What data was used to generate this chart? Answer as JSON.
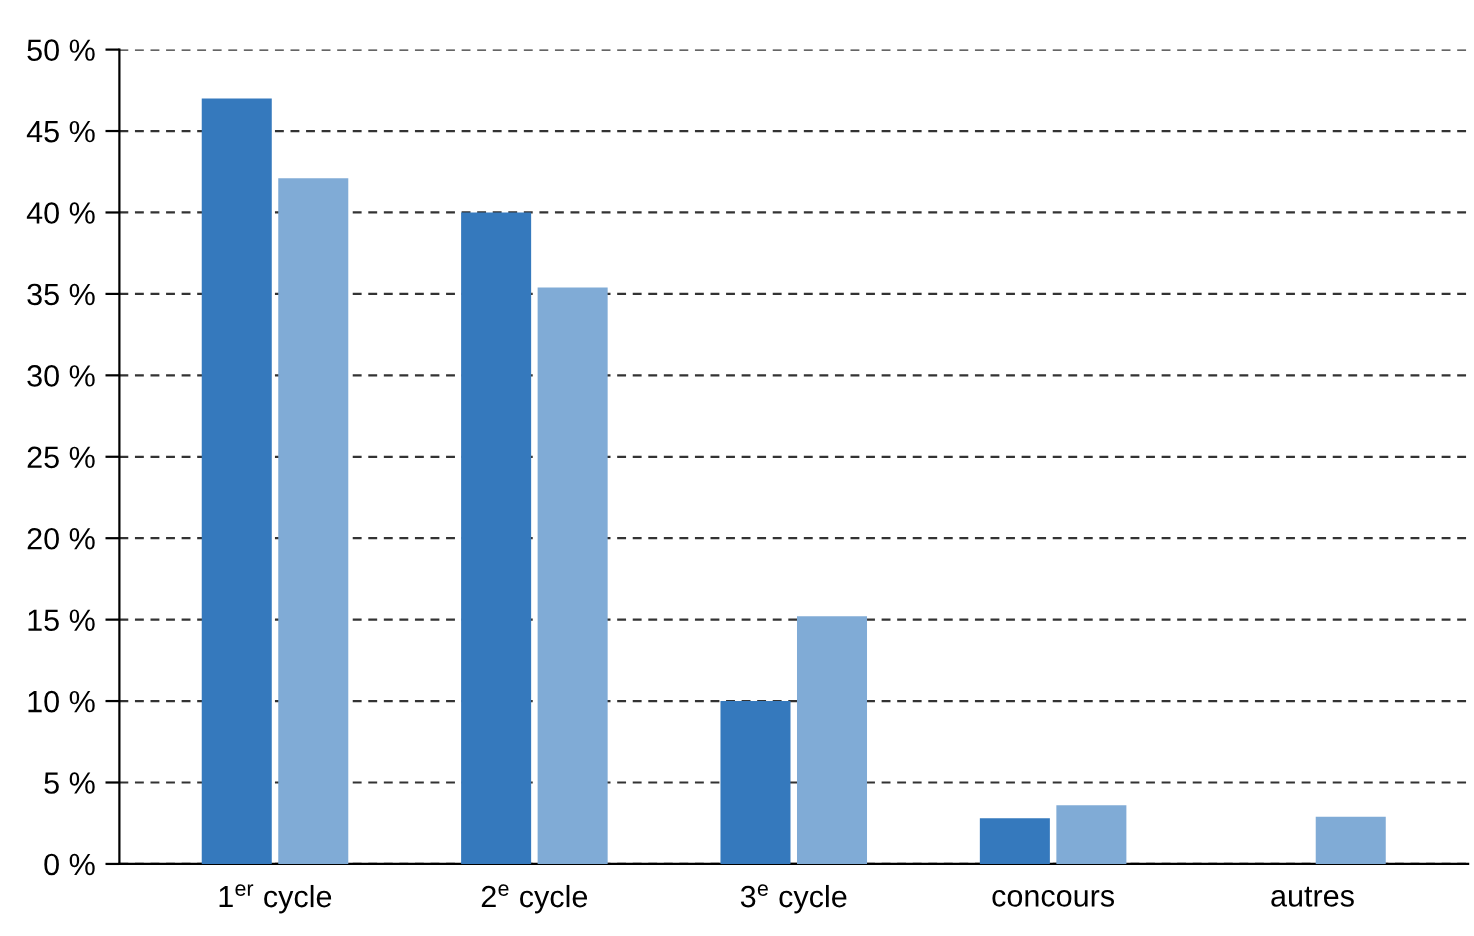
{
  "chart_data": {
    "type": "bar",
    "categories": [
      "1$^{er}$ cycle",
      "2$^{e}$ cycle",
      "3$^{e}$ cycle",
      "concours",
      "autres"
    ],
    "series": [
      {
        "color": "#3579bd",
        "values": [
          47,
          40,
          10,
          2.8,
          null
        ]
      },
      {
        "color": "#80abd6",
        "values": [
          42.1,
          35.4,
          15.2,
          3.6,
          2.9
        ]
      }
    ],
    "ylim": [
      0,
      50
    ],
    "yticks": [
      {
        "value": 0,
        "label": "0 %"
      },
      {
        "value": 5,
        "label": "5 %"
      },
      {
        "value": 10,
        "label": "10 %"
      },
      {
        "value": 15,
        "label": "15 %"
      },
      {
        "value": 20,
        "label": "20 %"
      },
      {
        "value": 25,
        "label": "25 %"
      },
      {
        "value": 30,
        "label": "30 %"
      },
      {
        "value": 35,
        "label": "35 %"
      },
      {
        "value": 40,
        "label": "40 %"
      },
      {
        "value": 45,
        "label": "45 %"
      },
      {
        "value": 50,
        "label": "50 %"
      }
    ],
    "grid": "y",
    "line_style": "dashed",
    "legend": false
  }
}
